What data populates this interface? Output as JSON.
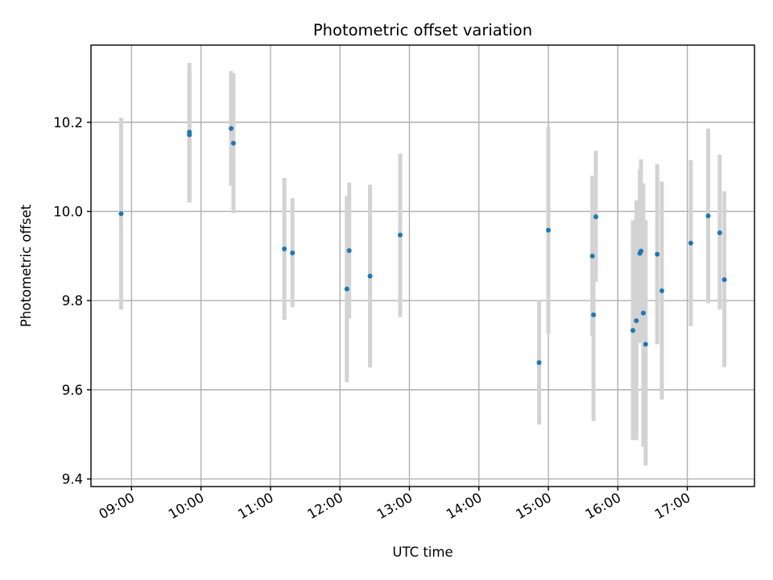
{
  "chart_data": {
    "type": "scatter",
    "title": "Photometric offset variation",
    "xlabel": "UTC time",
    "ylabel": "Photometric offset",
    "xlim": [
      "08:25",
      "17:58"
    ],
    "ylim": [
      9.383,
      10.373
    ],
    "x_ticks": [
      "09:00",
      "10:00",
      "11:00",
      "12:00",
      "13:00",
      "14:00",
      "15:00",
      "16:00",
      "17:00"
    ],
    "y_ticks": [
      9.4,
      9.6,
      9.8,
      10.0,
      10.2
    ],
    "grid": true,
    "error_bars": true,
    "colors": {
      "points": "#1f77b4",
      "error_bars": "#d3d3d3",
      "grid": "#b0b0b0"
    },
    "points": [
      {
        "x": "08:51",
        "y": 9.995,
        "ylow": 9.78,
        "yhigh": 10.21
      },
      {
        "x": "09:50",
        "y": 10.178,
        "ylow": 10.025,
        "yhigh": 10.333
      },
      {
        "x": "09:50",
        "y": 10.172,
        "ylow": 10.02,
        "yhigh": 10.32
      },
      {
        "x": "10:26",
        "y": 10.186,
        "ylow": 10.058,
        "yhigh": 10.315
      },
      {
        "x": "10:28",
        "y": 10.153,
        "ylow": 9.996,
        "yhigh": 10.31
      },
      {
        "x": "11:12",
        "y": 9.916,
        "ylow": 9.757,
        "yhigh": 10.075
      },
      {
        "x": "11:19",
        "y": 9.907,
        "ylow": 9.785,
        "yhigh": 10.03
      },
      {
        "x": "12:06",
        "y": 9.826,
        "ylow": 9.617,
        "yhigh": 10.034
      },
      {
        "x": "12:08",
        "y": 9.912,
        "ylow": 9.76,
        "yhigh": 10.065
      },
      {
        "x": "12:26",
        "y": 9.855,
        "ylow": 9.65,
        "yhigh": 10.06
      },
      {
        "x": "12:52",
        "y": 9.947,
        "ylow": 9.763,
        "yhigh": 10.13
      },
      {
        "x": "14:52",
        "y": 9.661,
        "ylow": 9.522,
        "yhigh": 9.8
      },
      {
        "x": "15:00",
        "y": 9.958,
        "ylow": 9.726,
        "yhigh": 10.19
      },
      {
        "x": "15:38",
        "y": 9.9,
        "ylow": 9.72,
        "yhigh": 10.08
      },
      {
        "x": "15:39",
        "y": 9.768,
        "ylow": 9.53,
        "yhigh": 10.005
      },
      {
        "x": "15:41",
        "y": 9.988,
        "ylow": 9.842,
        "yhigh": 10.136
      },
      {
        "x": "16:13",
        "y": 9.733,
        "ylow": 9.487,
        "yhigh": 9.98
      },
      {
        "x": "16:16",
        "y": 9.755,
        "ylow": 9.487,
        "yhigh": 10.025
      },
      {
        "x": "16:19",
        "y": 9.906,
        "ylow": 9.705,
        "yhigh": 10.095
      },
      {
        "x": "16:20",
        "y": 9.911,
        "ylow": 9.705,
        "yhigh": 10.117
      },
      {
        "x": "16:22",
        "y": 9.772,
        "ylow": 9.472,
        "yhigh": 10.063
      },
      {
        "x": "16:24",
        "y": 9.702,
        "ylow": 9.43,
        "yhigh": 9.98
      },
      {
        "x": "16:34",
        "y": 9.904,
        "ylow": 9.702,
        "yhigh": 10.106
      },
      {
        "x": "16:38",
        "y": 9.822,
        "ylow": 9.578,
        "yhigh": 10.067
      },
      {
        "x": "17:03",
        "y": 9.929,
        "ylow": 9.743,
        "yhigh": 10.115
      },
      {
        "x": "17:18",
        "y": 9.99,
        "ylow": 9.794,
        "yhigh": 10.186
      },
      {
        "x": "17:28",
        "y": 9.952,
        "ylow": 9.78,
        "yhigh": 10.127
      },
      {
        "x": "17:32",
        "y": 9.847,
        "ylow": 9.651,
        "yhigh": 10.045
      }
    ]
  }
}
